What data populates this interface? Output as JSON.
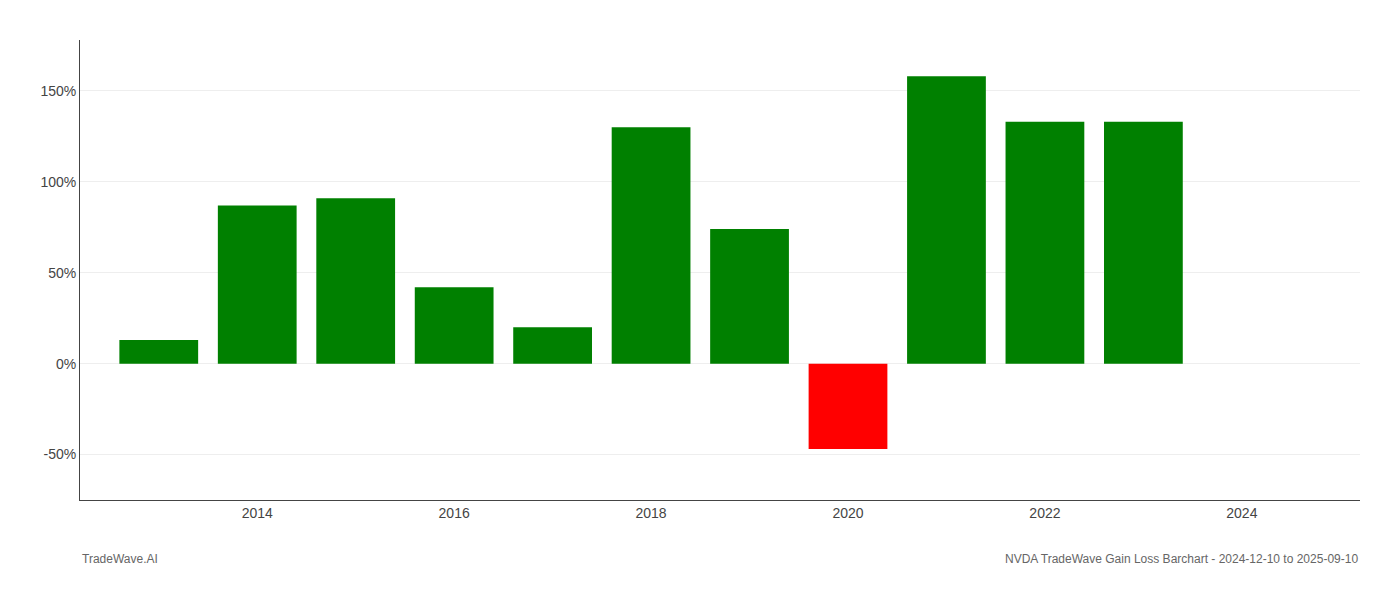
{
  "chart_data": {
    "type": "bar",
    "x": [
      2013,
      2014,
      2015,
      2016,
      2017,
      2018,
      2019,
      2020,
      2021,
      2022,
      2023
    ],
    "values": [
      13.0,
      87.0,
      91.0,
      42.0,
      20.0,
      130.0,
      74.0,
      -47.0,
      158.0,
      133.0,
      133.0
    ],
    "colors": [
      "#008000",
      "#008000",
      "#008000",
      "#008000",
      "#008000",
      "#008000",
      "#008000",
      "#ff0000",
      "#008000",
      "#008000",
      "#008000"
    ],
    "ylim": [
      -75,
      178
    ],
    "yticks": [
      {
        "value": -50,
        "label": "-50%"
      },
      {
        "value": 0,
        "label": "0%"
      },
      {
        "value": 50,
        "label": "50%"
      },
      {
        "value": 100,
        "label": "100%"
      },
      {
        "value": 150,
        "label": "150%"
      }
    ],
    "xlim": [
      2012.2,
      2025.2
    ],
    "xticks": [
      2014,
      2016,
      2018,
      2020,
      2022,
      2024
    ],
    "grid": "y",
    "annotations": [
      "TradeWave.AI",
      "NVDA TradeWave Gain Loss Barchart - 2024-12-10 to 2025-09-10"
    ]
  }
}
